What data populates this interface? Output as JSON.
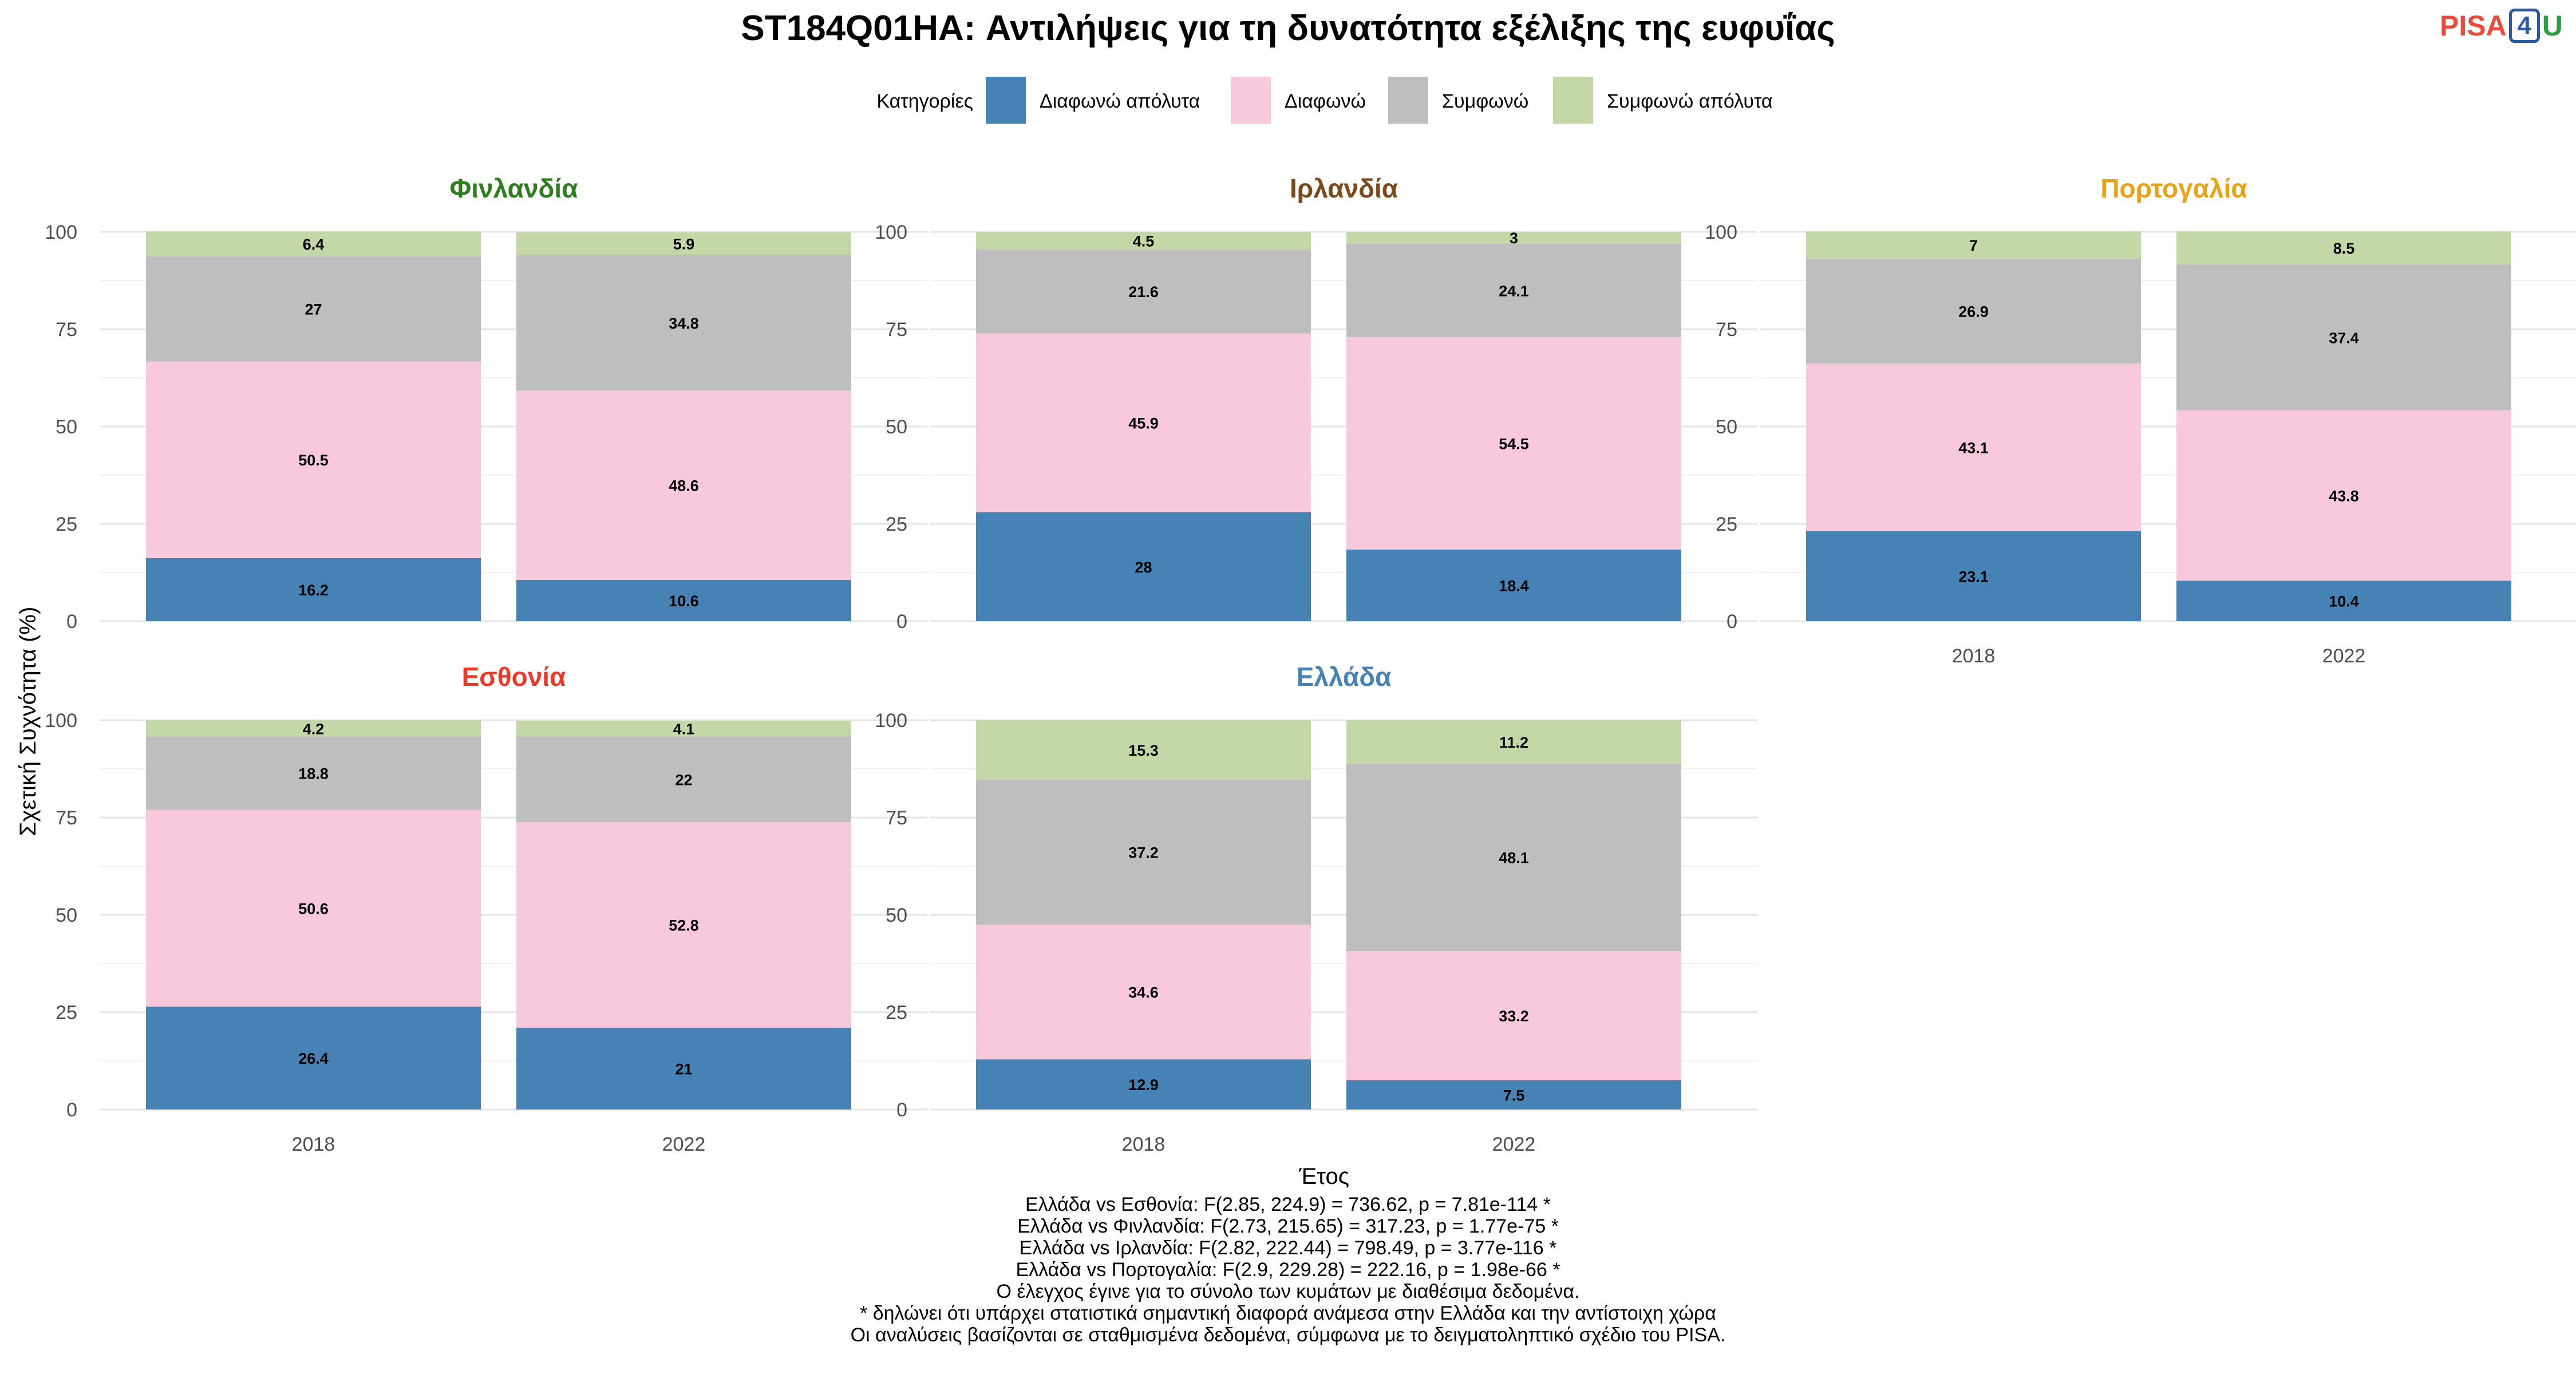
{
  "title": "ST184Q01HA: Αντιλήψεις για τη δυνατότητα εξέλιξης της ευφυΐας",
  "logo": {
    "part1": "PISA",
    "part2": "4",
    "part3": "U"
  },
  "legend": {
    "title": "Κατηγορίες",
    "items": [
      {
        "label": "Διαφωνώ απόλυτα",
        "color": "#4682b4"
      },
      {
        "label": "Διαφωνώ",
        "color": "#f8c8dc"
      },
      {
        "label": "Συμφωνώ",
        "color": "#bebebe"
      },
      {
        "label": "Συμφωνώ απόλυτα",
        "color": "#c3d8a6"
      }
    ]
  },
  "chart_data": {
    "type": "bar",
    "stacked": true,
    "xlabel": "Έτος",
    "ylabel": "Σχετική Συχνότητα (%)",
    "ylim": [
      0,
      100
    ],
    "yticks": [
      0,
      25,
      50,
      75,
      100
    ],
    "categories": [
      "2018",
      "2022"
    ],
    "legend_position": "top",
    "grid": true,
    "facets": [
      {
        "name": "Φινλανδία",
        "color": "#2e7d1e",
        "series": [
          {
            "name": "Διαφωνώ απόλυτα",
            "values": [
              16.2,
              10.6
            ]
          },
          {
            "name": "Διαφωνώ",
            "values": [
              50.5,
              48.6
            ]
          },
          {
            "name": "Συμφωνώ",
            "values": [
              27,
              34.8
            ]
          },
          {
            "name": "Συμφωνώ απόλυτα",
            "values": [
              6.4,
              5.9
            ]
          }
        ]
      },
      {
        "name": "Ιρλανδία",
        "color": "#7a4a1a",
        "series": [
          {
            "name": "Διαφωνώ απόλυτα",
            "values": [
              28,
              18.4
            ]
          },
          {
            "name": "Διαφωνώ",
            "values": [
              45.9,
              54.5
            ]
          },
          {
            "name": "Συμφωνώ",
            "values": [
              21.6,
              24.1
            ]
          },
          {
            "name": "Συμφωνώ απόλυτα",
            "values": [
              4.5,
              3
            ]
          }
        ]
      },
      {
        "name": "Πορτογαλία",
        "color": "#e8a317",
        "series": [
          {
            "name": "Διαφωνώ απόλυτα",
            "values": [
              23.1,
              10.4
            ]
          },
          {
            "name": "Διαφωνώ",
            "values": [
              43.1,
              43.8
            ]
          },
          {
            "name": "Συμφωνώ",
            "values": [
              26.9,
              37.4
            ]
          },
          {
            "name": "Συμφωνώ απόλυτα",
            "values": [
              7,
              8.5
            ]
          }
        ]
      },
      {
        "name": "Εσθονία",
        "color": "#e8392a",
        "series": [
          {
            "name": "Διαφωνώ απόλυτα",
            "values": [
              26.4,
              21
            ]
          },
          {
            "name": "Διαφωνώ",
            "values": [
              50.6,
              52.8
            ]
          },
          {
            "name": "Συμφωνώ",
            "values": [
              18.8,
              22
            ]
          },
          {
            "name": "Συμφωνώ απόλυτα",
            "values": [
              4.2,
              4.1
            ]
          }
        ]
      },
      {
        "name": "Ελλάδα",
        "color": "#4682b4",
        "series": [
          {
            "name": "Διαφωνώ απόλυτα",
            "values": [
              12.9,
              7.5
            ]
          },
          {
            "name": "Διαφωνώ",
            "values": [
              34.6,
              33.2
            ]
          },
          {
            "name": "Συμφωνώ",
            "values": [
              37.2,
              48.1
            ]
          },
          {
            "name": "Συμφωνώ απόλυτα",
            "values": [
              15.3,
              11.2
            ]
          }
        ]
      }
    ]
  },
  "notes": [
    "Ελλάδα vs Εσθονία: F(2.85, 224.9) = 736.62, p = 7.81e-114 *",
    "Ελλάδα vs Φινλανδία: F(2.73, 215.65) = 317.23, p = 1.77e-75 *",
    "Ελλάδα vs Ιρλανδία: F(2.82, 222.44) = 798.49, p = 3.77e-116 *",
    "Ελλάδα vs Πορτογαλία: F(2.9, 229.28) = 222.16, p = 1.98e-66 *",
    "Ο έλεγχος έγινε για το σύνολο των κυμάτων με διαθέσιμα δεδομένα.",
    "* δηλώνει ότι υπάρχει στατιστικά σημαντική διαφορά ανάμεσα στην Ελλάδα και την αντίστοιχη χώρα",
    "Οι αναλύσεις βασίζονται σε σταθμισμένα δεδομένα, σύμφωνα με το δειγματοληπτικό σχέδιο του PISA."
  ]
}
